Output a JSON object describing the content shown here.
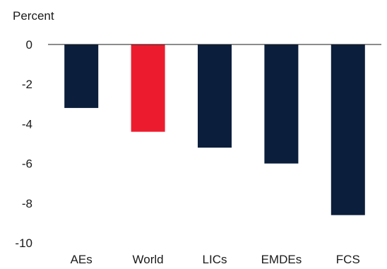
{
  "chart_data": {
    "type": "bar",
    "ylabel": "Percent",
    "categories": [
      "AEs",
      "World",
      "LICs",
      "EMDEs",
      "FCS"
    ],
    "values": [
      -3.2,
      -4.4,
      -5.2,
      -6.0,
      -8.6
    ],
    "highlight": [
      false,
      true,
      false,
      false,
      false
    ],
    "ylim": [
      -10,
      0
    ],
    "yticks": [
      0,
      -2,
      -4,
      -6,
      -8,
      -10
    ],
    "ytick_labels": [
      "0",
      "-2",
      "-4",
      "-6",
      "-8",
      "-10"
    ],
    "grid": false,
    "legend": "none",
    "colors": {
      "bar": "#0b1e3c",
      "highlight": "#ec1c2e",
      "axis": "#1a1a1a"
    }
  }
}
